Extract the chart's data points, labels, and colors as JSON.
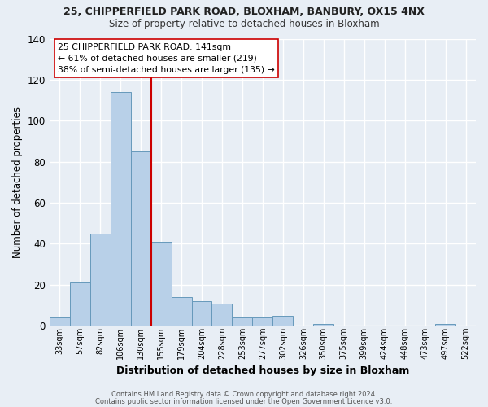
{
  "title_line1": "25, CHIPPERFIELD PARK ROAD, BLOXHAM, BANBURY, OX15 4NX",
  "title_line2": "Size of property relative to detached houses in Bloxham",
  "xlabel": "Distribution of detached houses by size in Bloxham",
  "ylabel": "Number of detached properties",
  "categories": [
    "33sqm",
    "57sqm",
    "82sqm",
    "106sqm",
    "130sqm",
    "155sqm",
    "179sqm",
    "204sqm",
    "228sqm",
    "253sqm",
    "277sqm",
    "302sqm",
    "326sqm",
    "350sqm",
    "375sqm",
    "399sqm",
    "424sqm",
    "448sqm",
    "473sqm",
    "497sqm",
    "522sqm"
  ],
  "values": [
    4,
    21,
    45,
    114,
    85,
    41,
    14,
    12,
    11,
    4,
    4,
    5,
    0,
    1,
    0,
    0,
    0,
    0,
    0,
    1,
    0
  ],
  "bar_color": "#b8d0e8",
  "bar_edge_color": "#6699bb",
  "background_color": "#e8eef5",
  "grid_color": "#ffffff",
  "vline_x_idx": 4,
  "vline_color": "#cc0000",
  "annotation_text": "25 CHIPPERFIELD PARK ROAD: 141sqm\n← 61% of detached houses are smaller (219)\n38% of semi-detached houses are larger (135) →",
  "annotation_box_color": "#ffffff",
  "annotation_box_edge_color": "#cc0000",
  "ylim": [
    0,
    140
  ],
  "yticks": [
    0,
    20,
    40,
    60,
    80,
    100,
    120,
    140
  ],
  "footer1": "Contains HM Land Registry data © Crown copyright and database right 2024.",
  "footer2": "Contains public sector information licensed under the Open Government Licence v3.0."
}
